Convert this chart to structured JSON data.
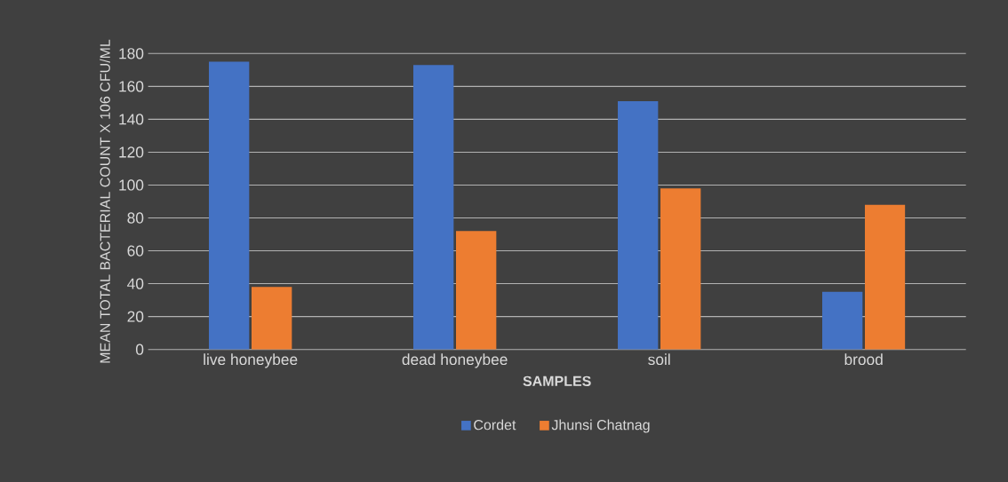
{
  "chart_data": {
    "type": "bar",
    "xlabel": "SAMPLES",
    "ylabel": "MEAN TOTAL BACTERIAL COUNT X 106  CFU/ML",
    "categories": [
      "live honeybee",
      "dead honeybee",
      "soil",
      "brood"
    ],
    "series": [
      {
        "name": "Cordet",
        "color": "#4472c4",
        "values": [
          175,
          173,
          151,
          35
        ]
      },
      {
        "name": "Jhunsi Chatnag",
        "color": "#ed7d31",
        "values": [
          38,
          72,
          98,
          88
        ]
      }
    ],
    "ylim": [
      0,
      180
    ],
    "yticks": [
      0,
      20,
      40,
      60,
      80,
      100,
      120,
      140,
      160,
      180
    ],
    "grid": "y",
    "legend": "bottom"
  }
}
